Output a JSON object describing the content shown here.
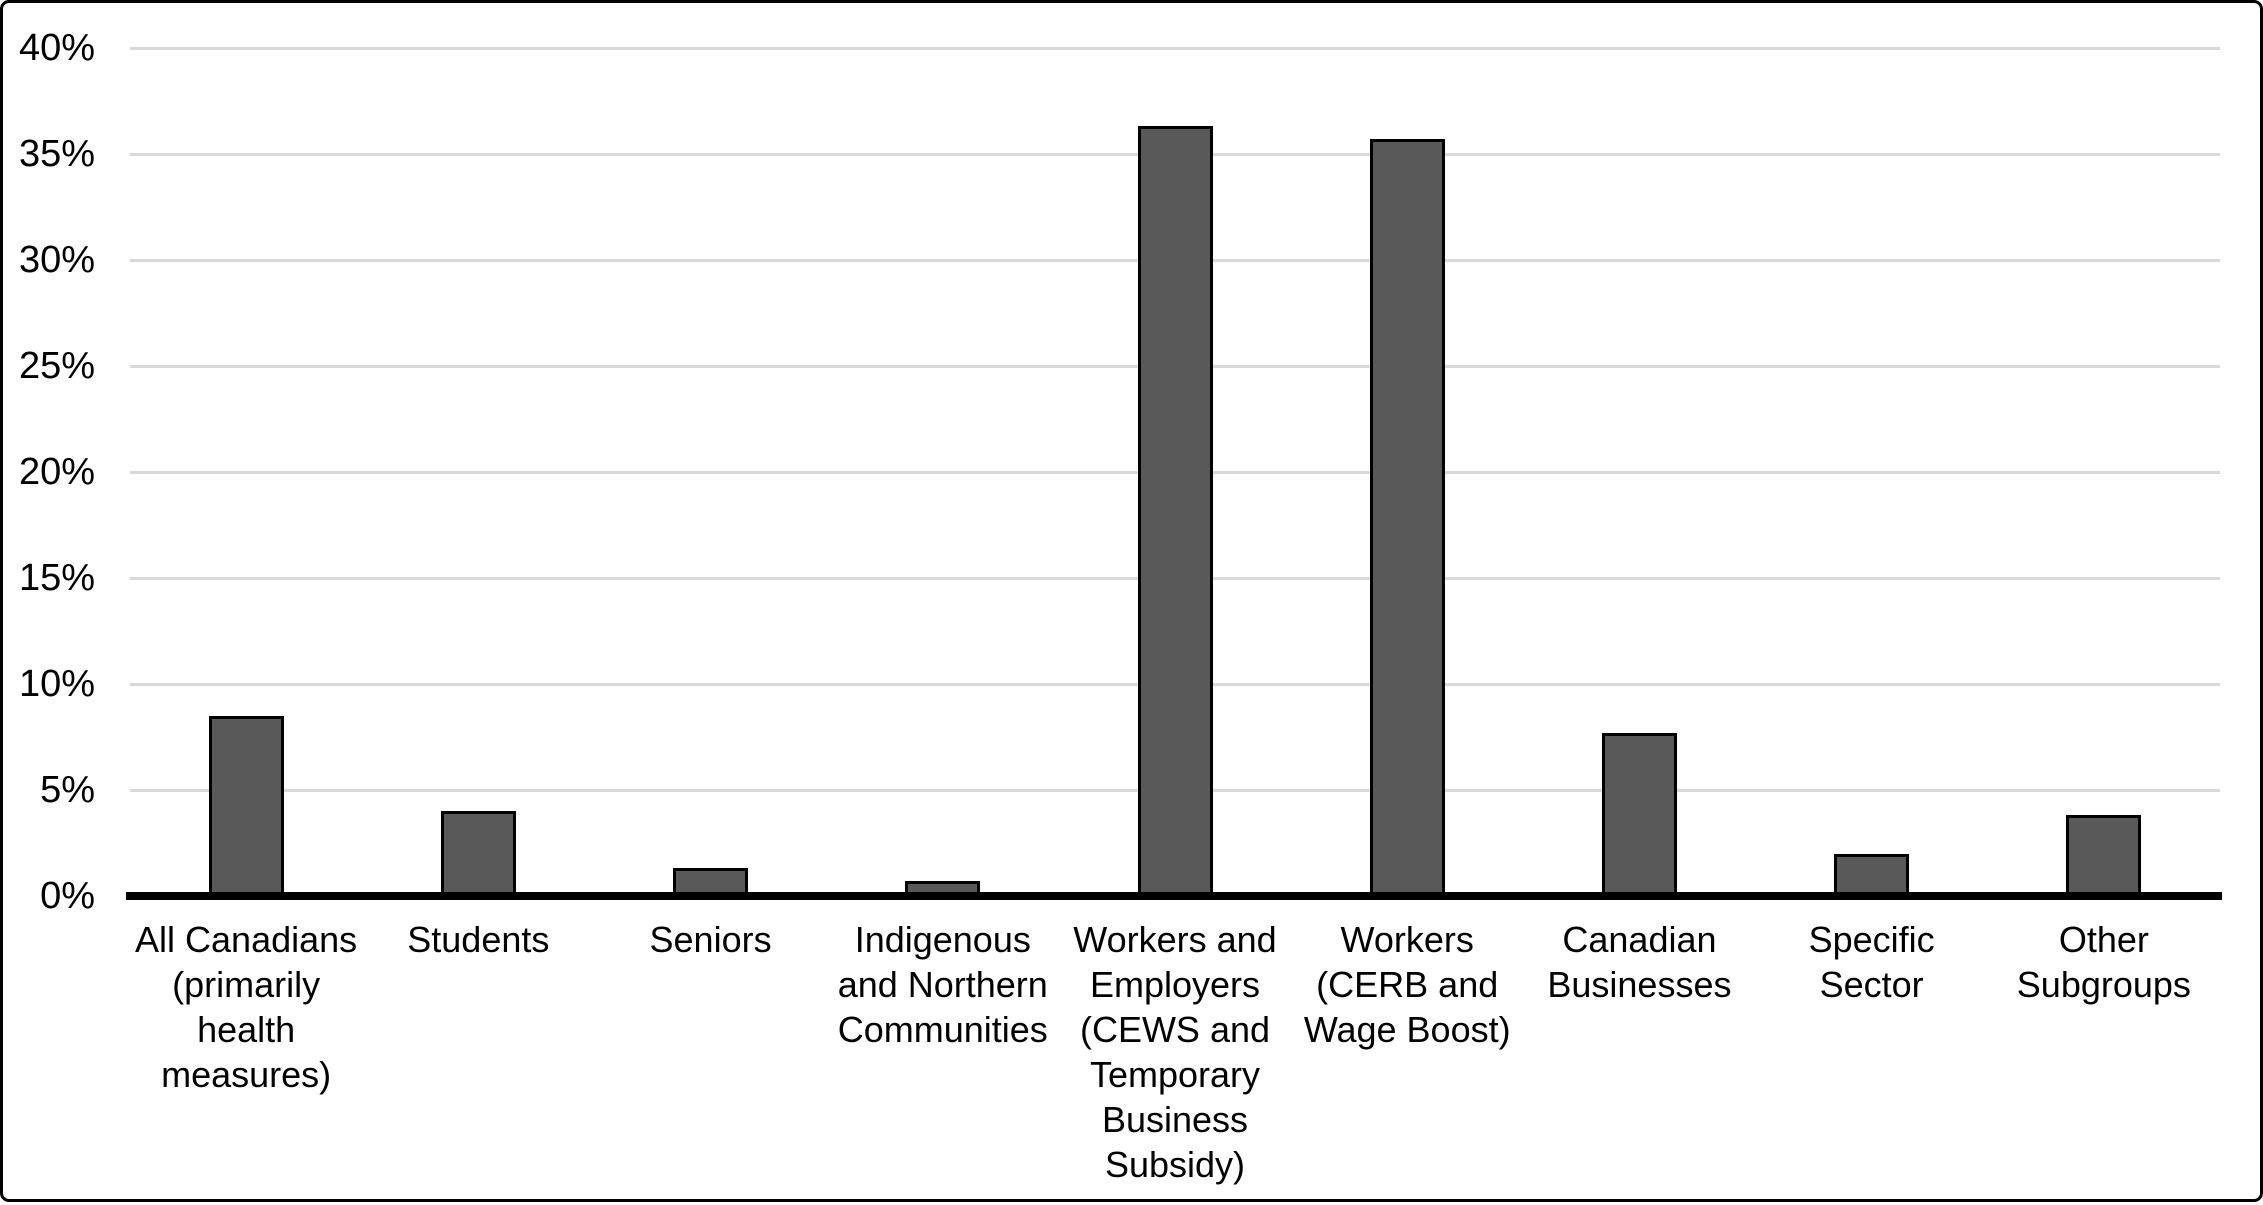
{
  "chart_data": {
    "type": "bar",
    "title": "",
    "xlabel": "",
    "ylabel": "",
    "categories": [
      "All Canadians\n(primarily\nhealth\nmeasures)",
      "Students",
      "Seniors",
      "Indigenous\nand Northern\nCommunities",
      "Workers and\nEmployers\n(CEWS and\nTemporary\nBusiness\nSubsidy)",
      "Workers\n(CERB and\nWage Boost)",
      "Canadian\nBusinesses",
      "Specific\nSector",
      "Other\nSubgroups"
    ],
    "values": [
      8.5,
      4.0,
      1.3,
      0.7,
      36.3,
      35.7,
      7.7,
      2.0,
      3.8
    ],
    "value_unit": "%",
    "ylim": [
      0,
      40
    ],
    "ytick_step": 5,
    "ytick_labels": [
      "0%",
      "5%",
      "10%",
      "15%",
      "20%",
      "25%",
      "30%",
      "35%",
      "40%"
    ],
    "grid": "horizontal",
    "legend": "none",
    "colors": {
      "bar_fill": "#595959",
      "bar_border": "#000000",
      "gridline": "#D9D9D9",
      "axis_line": "#000000",
      "text": "#000000",
      "background": "#FFFFFF",
      "frame_border": "#000000"
    }
  }
}
